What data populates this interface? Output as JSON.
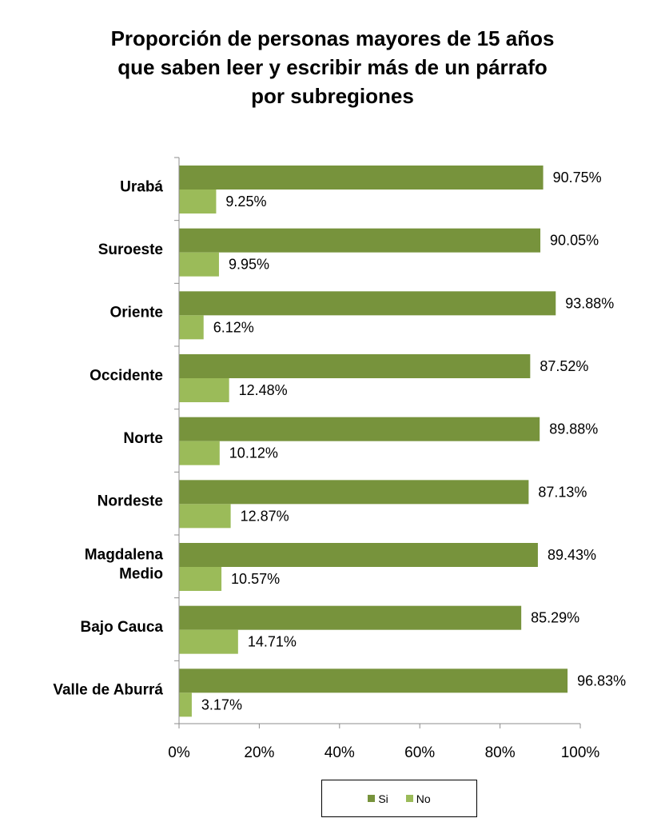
{
  "chart_data": {
    "type": "bar",
    "orientation": "horizontal",
    "title_lines": [
      "Proporción de personas mayores de 15 años",
      "que saben leer y escribir más de un párrafo",
      "por subregiones"
    ],
    "categories": [
      [
        "Urabá"
      ],
      [
        "Suroeste"
      ],
      [
        "Oriente"
      ],
      [
        "Occidente"
      ],
      [
        "Norte"
      ],
      [
        "Nordeste"
      ],
      [
        "Magdalena",
        "Medio"
      ],
      [
        "Bajo Cauca"
      ],
      [
        "Valle de Aburrá"
      ]
    ],
    "series": [
      {
        "name": "Si",
        "color": "#77933C",
        "values": [
          90.75,
          90.05,
          93.88,
          87.52,
          89.88,
          87.13,
          89.43,
          85.29,
          96.83
        ],
        "labels": [
          "90.75%",
          "90.05%",
          "93.88%",
          "87.52%",
          "89.88%",
          "87.13%",
          "89.43%",
          "85.29%",
          "96.83%"
        ]
      },
      {
        "name": "No",
        "color": "#9BBB59",
        "values": [
          9.25,
          9.95,
          6.12,
          12.48,
          10.12,
          12.87,
          10.57,
          14.71,
          3.17
        ],
        "labels": [
          "9.25%",
          "9.95%",
          "6.12%",
          "12.48%",
          "10.12%",
          "12.87%",
          "10.57%",
          "14.71%",
          "3.17%"
        ]
      }
    ],
    "xlim": [
      0,
      100
    ],
    "x_ticks": [
      "0%",
      "20%",
      "40%",
      "60%",
      "80%",
      "100%"
    ],
    "grid": false,
    "legend_position": "bottom"
  }
}
